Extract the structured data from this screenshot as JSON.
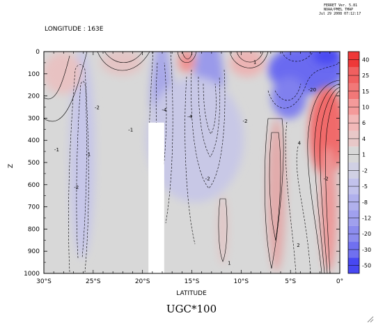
{
  "header": {
    "program": "FERRET Ver. 5.81",
    "org": "NOAA/PMEL TMAP",
    "date": "Jul 29 2008 07:12:17"
  },
  "subtitle": "LONGITUDE : 163E",
  "title": "UGC*100",
  "chart_data": {
    "type": "heatmap",
    "xlabel": "LATITUDE",
    "ylabel": "Z",
    "x_ticks": [
      "30°S",
      "25°S",
      "20°S",
      "15°S",
      "10°S",
      "5°S",
      "0°"
    ],
    "x_tick_values": [
      -30,
      -25,
      -20,
      -15,
      -10,
      -5,
      0
    ],
    "xlim": [
      -30,
      0
    ],
    "y_ticks": [
      0,
      100,
      200,
      300,
      400,
      500,
      600,
      700,
      800,
      900,
      1000
    ],
    "ylim": [
      1000,
      0
    ],
    "y_inverted": true,
    "colorbar_levels": [
      "40",
      "25",
      "15",
      "10",
      "6",
      "4",
      "1",
      "-2",
      "-5",
      "-8",
      "-12",
      "-20",
      "-30",
      "-50"
    ],
    "colorbar_colors": [
      "#ee3838",
      "#f06060",
      "#f27878",
      "#f49a9a",
      "#f2b8b8",
      "#e8c8c8",
      "#d8d8d8",
      "#d0d0e4",
      "#c2c2ec",
      "#b0b0ec",
      "#a0a0ee",
      "#8c8cee",
      "#7070f0",
      "#4848f2"
    ],
    "missing_region": {
      "lat_min": -19.4,
      "lat_max": -17.8,
      "depth_min": 320,
      "depth_max": 1000
    },
    "features": [
      {
        "kind": "positive",
        "lat": -1.8,
        "depth": 260,
        "peak": 40
      },
      {
        "kind": "negative",
        "lat": -3.5,
        "depth": 60,
        "peak": -50
      },
      {
        "kind": "negative",
        "lat": -12,
        "depth": 120,
        "peak": -20
      },
      {
        "kind": "negative",
        "lat": -18,
        "depth": 150,
        "peak": -8
      },
      {
        "kind": "negative",
        "lat": -25.5,
        "depth": 450,
        "peak": -3
      },
      {
        "kind": "positive",
        "lat": -15.5,
        "depth": 20,
        "peak": 6
      },
      {
        "kind": "positive",
        "lat": -7,
        "depth": 30,
        "peak": 4
      },
      {
        "kind": "positive",
        "lat": -4,
        "depth": 550,
        "peak": 5
      },
      {
        "kind": "positive",
        "lat": -11,
        "depth": 810,
        "peak": 2
      }
    ],
    "contour_labels": [
      {
        "text": "-2",
        "lat": -26.7,
        "depth": 620
      },
      {
        "text": "-2",
        "lat": -24.6,
        "depth": 260
      },
      {
        "text": "-1",
        "lat": -25.5,
        "depth": 470
      },
      {
        "text": "-1",
        "lat": -28.7,
        "depth": 450
      },
      {
        "text": "-1",
        "lat": -21.2,
        "depth": 360
      },
      {
        "text": "-4",
        "lat": -17.8,
        "depth": 270
      },
      {
        "text": "-4",
        "lat": -15.2,
        "depth": 300
      },
      {
        "text": "-2",
        "lat": -13.4,
        "depth": 580
      },
      {
        "text": "-2",
        "lat": -9.6,
        "depth": 320
      },
      {
        "text": "4",
        "lat": -4.1,
        "depth": 420
      },
      {
        "text": "2",
        "lat": -4.2,
        "depth": 880
      },
      {
        "text": "-2",
        "lat": -1.4,
        "depth": 580
      },
      {
        "text": "1",
        "lat": -11.2,
        "depth": 960
      },
      {
        "text": "1",
        "lat": -8.6,
        "depth": 55
      },
      {
        "text": "-20",
        "lat": -2.8,
        "depth": 180
      }
    ]
  }
}
